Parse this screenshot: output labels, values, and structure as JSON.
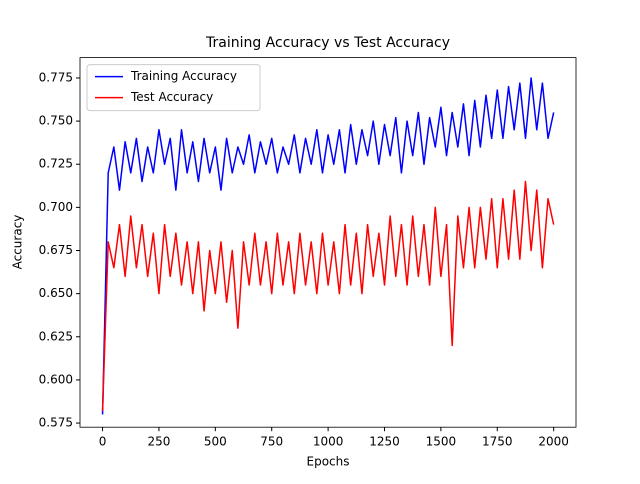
{
  "chart_data": {
    "type": "line",
    "title": "Training Accuracy vs Test Accuracy",
    "xlabel": "Epochs",
    "ylabel": "Accuracy",
    "x": [
      0,
      25,
      50,
      75,
      100,
      125,
      150,
      175,
      200,
      225,
      250,
      275,
      300,
      325,
      350,
      375,
      400,
      425,
      450,
      475,
      500,
      525,
      550,
      575,
      600,
      625,
      650,
      675,
      700,
      725,
      750,
      775,
      800,
      825,
      850,
      875,
      900,
      925,
      950,
      975,
      1000,
      1025,
      1050,
      1075,
      1100,
      1125,
      1150,
      1175,
      1200,
      1225,
      1250,
      1275,
      1300,
      1325,
      1350,
      1375,
      1400,
      1425,
      1450,
      1475,
      1500,
      1525,
      1550,
      1575,
      1600,
      1625,
      1650,
      1675,
      1700,
      1725,
      1750,
      1775,
      1800,
      1825,
      1850,
      1875,
      1900,
      1925,
      1950,
      1975,
      2000
    ],
    "series": [
      {
        "name": "Training Accuracy",
        "color": "#0000ff",
        "values": [
          0.58,
          0.72,
          0.735,
          0.71,
          0.738,
          0.72,
          0.74,
          0.715,
          0.735,
          0.72,
          0.745,
          0.725,
          0.74,
          0.71,
          0.745,
          0.72,
          0.738,
          0.715,
          0.74,
          0.72,
          0.735,
          0.71,
          0.74,
          0.72,
          0.735,
          0.725,
          0.742,
          0.72,
          0.738,
          0.725,
          0.74,
          0.72,
          0.735,
          0.725,
          0.742,
          0.72,
          0.74,
          0.725,
          0.745,
          0.72,
          0.742,
          0.725,
          0.745,
          0.72,
          0.748,
          0.725,
          0.745,
          0.73,
          0.75,
          0.725,
          0.748,
          0.73,
          0.752,
          0.72,
          0.75,
          0.73,
          0.755,
          0.725,
          0.752,
          0.735,
          0.758,
          0.73,
          0.755,
          0.735,
          0.76,
          0.73,
          0.762,
          0.735,
          0.765,
          0.74,
          0.768,
          0.74,
          0.77,
          0.745,
          0.772,
          0.74,
          0.775,
          0.745,
          0.772,
          0.74,
          0.755
        ]
      },
      {
        "name": "Test Accuracy",
        "color": "#ff0000",
        "values": [
          0.582,
          0.68,
          0.665,
          0.69,
          0.66,
          0.695,
          0.665,
          0.69,
          0.66,
          0.685,
          0.65,
          0.69,
          0.66,
          0.685,
          0.655,
          0.68,
          0.65,
          0.68,
          0.64,
          0.675,
          0.65,
          0.68,
          0.645,
          0.675,
          0.63,
          0.68,
          0.655,
          0.685,
          0.655,
          0.68,
          0.65,
          0.685,
          0.655,
          0.68,
          0.65,
          0.685,
          0.655,
          0.68,
          0.65,
          0.685,
          0.655,
          0.68,
          0.65,
          0.69,
          0.655,
          0.685,
          0.65,
          0.69,
          0.66,
          0.685,
          0.655,
          0.695,
          0.66,
          0.69,
          0.655,
          0.695,
          0.66,
          0.69,
          0.655,
          0.7,
          0.66,
          0.69,
          0.62,
          0.695,
          0.665,
          0.7,
          0.665,
          0.7,
          0.67,
          0.705,
          0.665,
          0.705,
          0.67,
          0.71,
          0.67,
          0.715,
          0.675,
          0.71,
          0.665,
          0.705,
          0.69
        ]
      }
    ],
    "xlim": [
      -100,
      2099
    ],
    "ylim": [
      0.5726,
      0.7868
    ],
    "xticks": [
      0,
      250,
      500,
      750,
      1000,
      1250,
      1500,
      1750,
      2000
    ],
    "yticks": [
      0.575,
      {
        "value": 0.6,
        "label": "0.600"
      },
      0.625,
      {
        "value": 0.65,
        "label": "0.650"
      },
      0.675,
      {
        "value": 0.7,
        "label": "0.700"
      },
      0.725,
      {
        "value": 0.75,
        "label": "0.750"
      },
      0.775
    ],
    "legend": "upper left",
    "grid": false
  }
}
